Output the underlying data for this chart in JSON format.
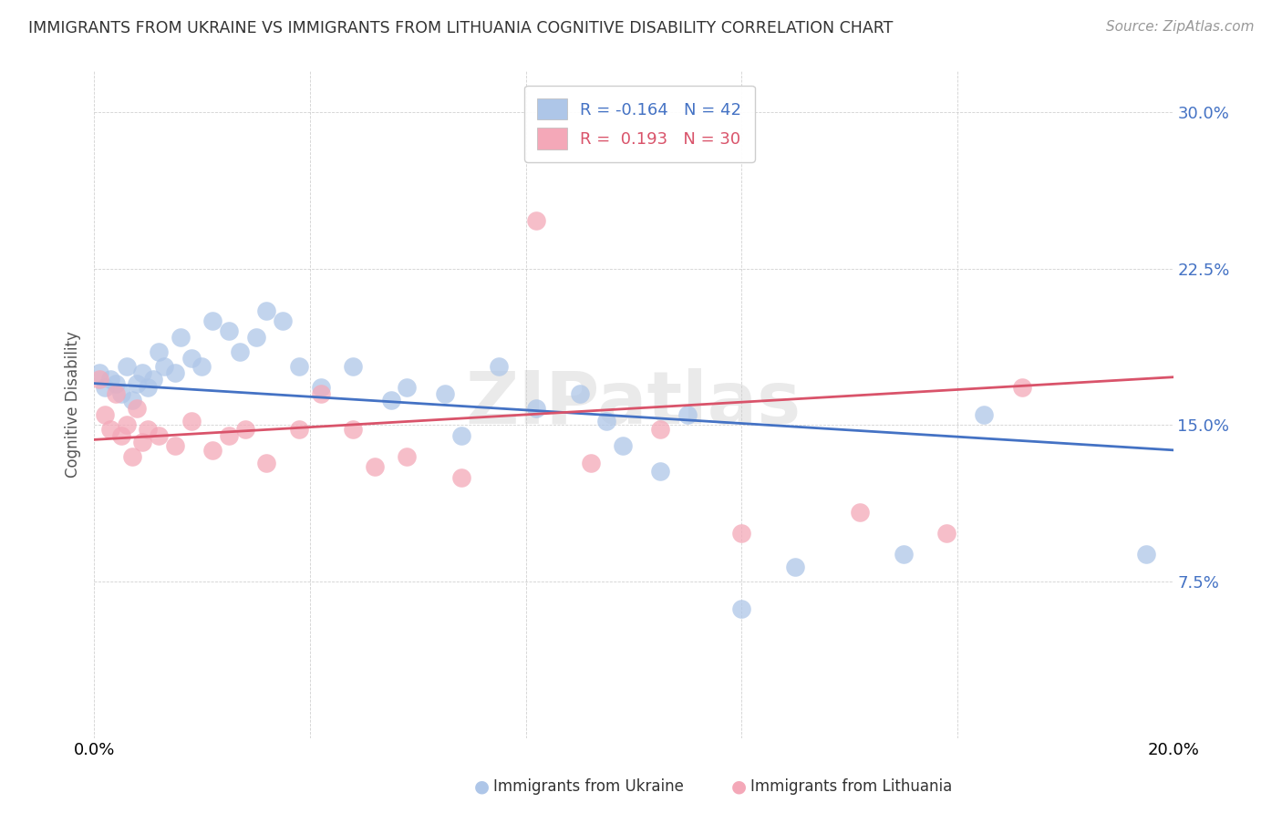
{
  "title": "IMMIGRANTS FROM UKRAINE VS IMMIGRANTS FROM LITHUANIA COGNITIVE DISABILITY CORRELATION CHART",
  "source": "Source: ZipAtlas.com",
  "ylabel": "Cognitive Disability",
  "xlim": [
    0.0,
    0.2
  ],
  "ylim": [
    0.0,
    0.32
  ],
  "yticks": [
    0.075,
    0.15,
    0.225,
    0.3
  ],
  "ytick_labels": [
    "7.5%",
    "15.0%",
    "22.5%",
    "30.0%"
  ],
  "xticks": [
    0.0,
    0.04,
    0.08,
    0.12,
    0.16,
    0.2
  ],
  "xtick_labels": [
    "0.0%",
    "",
    "",
    "",
    "",
    "20.0%"
  ],
  "ukraine_R": -0.164,
  "ukraine_N": 42,
  "lithuania_R": 0.193,
  "lithuania_N": 30,
  "ukraine_color": "#aec6e8",
  "lithuania_color": "#f4a8b8",
  "ukraine_line_color": "#4472c4",
  "lithuania_line_color": "#d9536a",
  "watermark": "ZIPatlas",
  "ukraine_line_start": 0.17,
  "ukraine_line_end": 0.138,
  "lithuania_line_start": 0.143,
  "lithuania_line_end": 0.173,
  "ukraine_x": [
    0.001,
    0.002,
    0.003,
    0.004,
    0.005,
    0.006,
    0.007,
    0.008,
    0.009,
    0.01,
    0.011,
    0.012,
    0.013,
    0.015,
    0.016,
    0.018,
    0.02,
    0.022,
    0.025,
    0.027,
    0.03,
    0.032,
    0.035,
    0.038,
    0.042,
    0.048,
    0.055,
    0.058,
    0.065,
    0.068,
    0.075,
    0.082,
    0.09,
    0.095,
    0.098,
    0.105,
    0.11,
    0.12,
    0.13,
    0.15,
    0.165,
    0.195
  ],
  "ukraine_y": [
    0.175,
    0.168,
    0.172,
    0.17,
    0.165,
    0.178,
    0.162,
    0.17,
    0.175,
    0.168,
    0.172,
    0.185,
    0.178,
    0.175,
    0.192,
    0.182,
    0.178,
    0.2,
    0.195,
    0.185,
    0.192,
    0.205,
    0.2,
    0.178,
    0.168,
    0.178,
    0.162,
    0.168,
    0.165,
    0.145,
    0.178,
    0.158,
    0.165,
    0.152,
    0.14,
    0.128,
    0.155,
    0.062,
    0.082,
    0.088,
    0.155,
    0.088
  ],
  "lithuania_x": [
    0.001,
    0.002,
    0.003,
    0.004,
    0.005,
    0.006,
    0.007,
    0.008,
    0.009,
    0.01,
    0.012,
    0.015,
    0.018,
    0.022,
    0.025,
    0.028,
    0.032,
    0.038,
    0.042,
    0.048,
    0.052,
    0.058,
    0.068,
    0.082,
    0.092,
    0.105,
    0.12,
    0.142,
    0.158,
    0.172
  ],
  "lithuania_y": [
    0.172,
    0.155,
    0.148,
    0.165,
    0.145,
    0.15,
    0.135,
    0.158,
    0.142,
    0.148,
    0.145,
    0.14,
    0.152,
    0.138,
    0.145,
    0.148,
    0.132,
    0.148,
    0.165,
    0.148,
    0.13,
    0.135,
    0.125,
    0.248,
    0.132,
    0.148,
    0.098,
    0.108,
    0.098,
    0.168
  ]
}
